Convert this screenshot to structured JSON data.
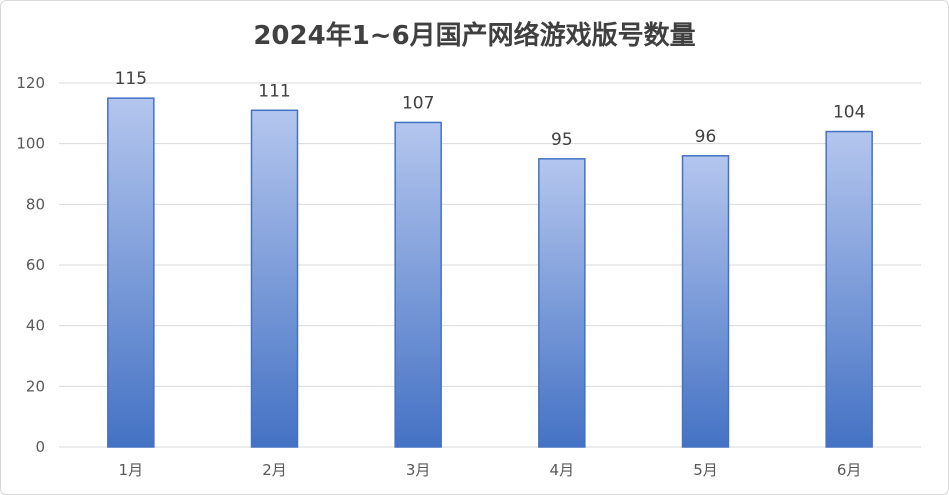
{
  "chart_data": {
    "type": "bar",
    "title": "2024年1~6月国产网络游戏版号数量",
    "xlabel": "",
    "ylabel": "",
    "categories": [
      "1月",
      "2月",
      "3月",
      "4月",
      "5月",
      "6月"
    ],
    "values": [
      115,
      111,
      107,
      95,
      96,
      104
    ],
    "ylim": [
      0,
      120
    ],
    "yticks": [
      0,
      20,
      40,
      60,
      80,
      100,
      120
    ],
    "grid": true,
    "legend": "none",
    "colors": {
      "bar_top": "#b4c6ee",
      "bar_bottom": "#4472c4",
      "bar_stroke": "#4472c4",
      "grid": "#d9d9d9"
    }
  }
}
